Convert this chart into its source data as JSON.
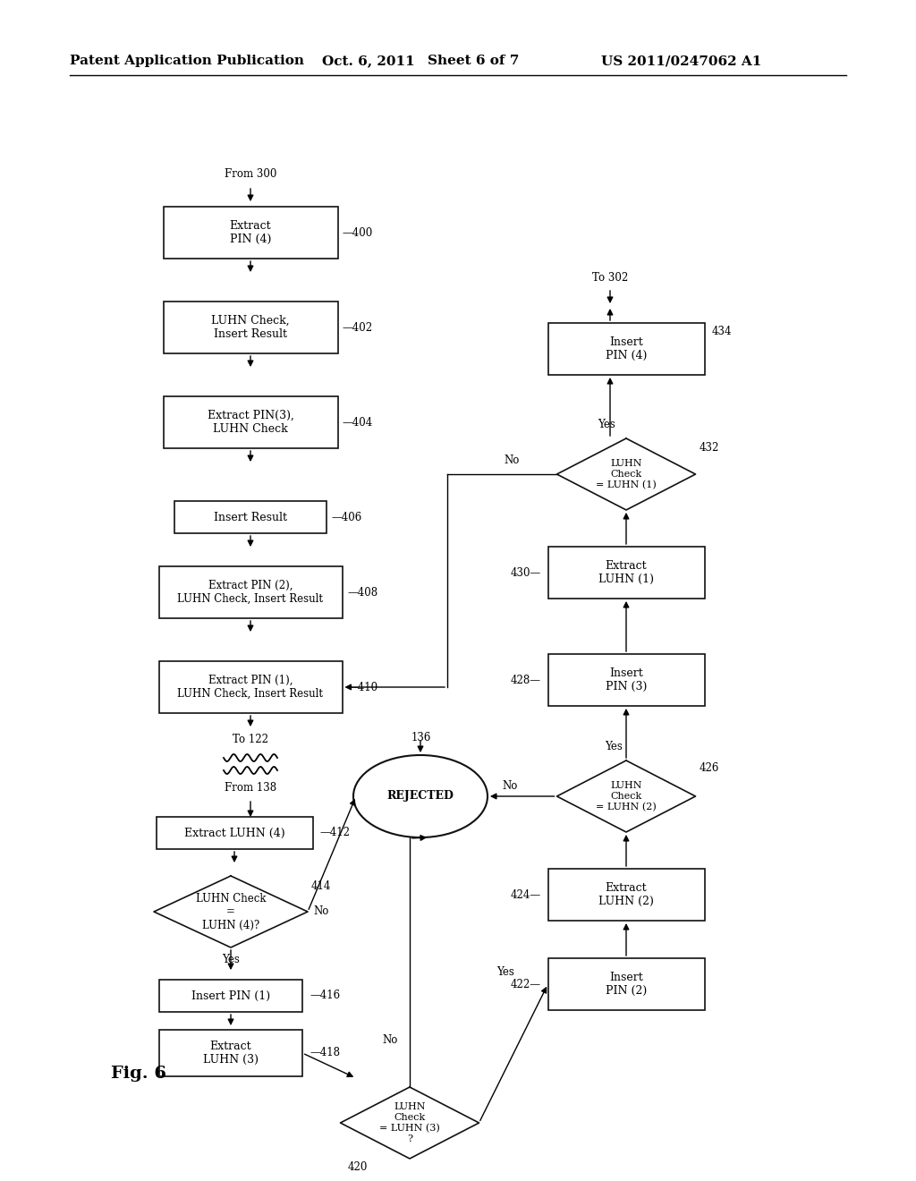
{
  "bg": "#ffffff",
  "hdr1": "Patent Application Publication",
  "hdr2": "Oct. 6, 2011",
  "hdr3": "Sheet 6 of 7",
  "hdr4": "US 2011/0247062 A1",
  "fig": "Fig. 6",
  "note1": "From 300",
  "note2": "To 122",
  "note3": "From 138",
  "note4": "To 302"
}
